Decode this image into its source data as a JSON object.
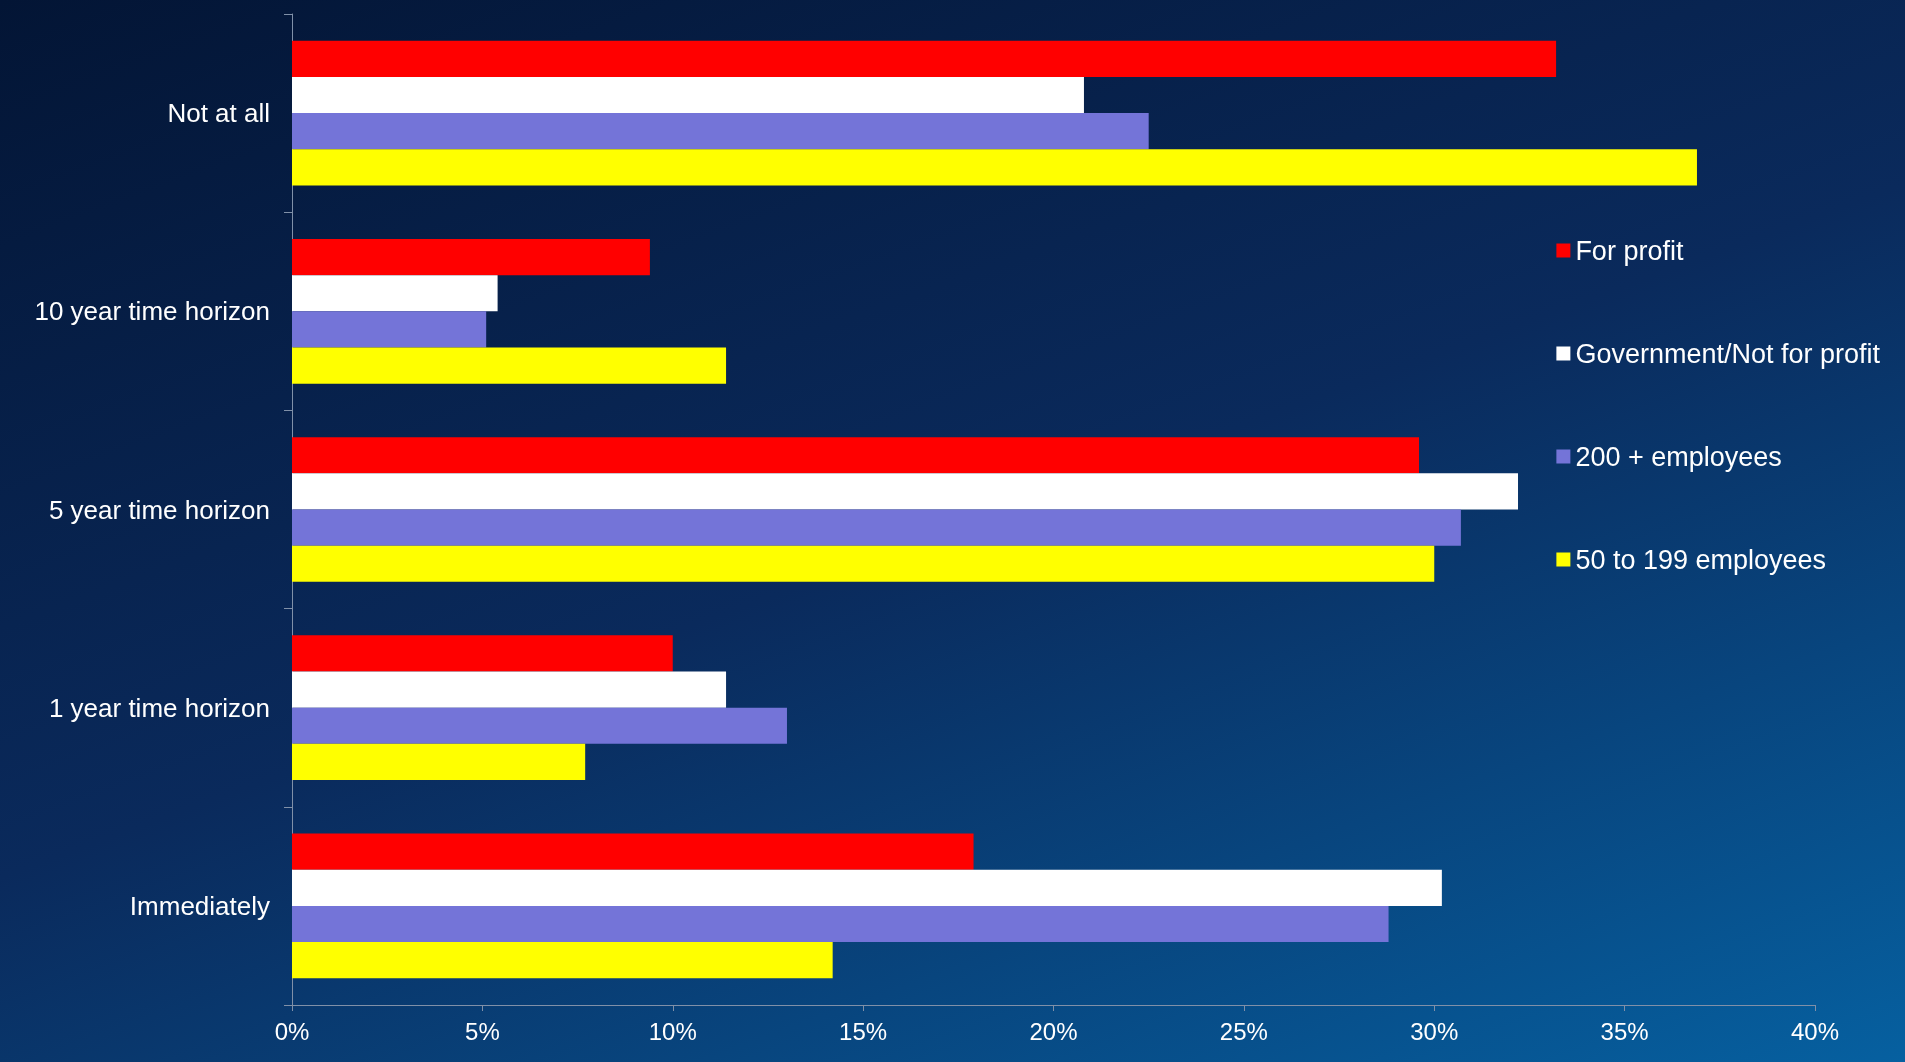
{
  "chart_data": {
    "type": "bar",
    "orientation": "horizontal",
    "categories": [
      "Not at all",
      "10 year time horizon",
      "5 year time horizon",
      "1 year time horizon",
      "Immediately"
    ],
    "series": [
      {
        "name": "For profit",
        "color": "#ff0000",
        "values": [
          33.2,
          9.4,
          29.6,
          10.0,
          17.9
        ]
      },
      {
        "name": "Government/Not for profit",
        "color": "#ffffff",
        "values": [
          20.8,
          5.4,
          32.2,
          11.4,
          30.2
        ]
      },
      {
        "name": "200 + employees",
        "color": "#7474d8",
        "values": [
          22.5,
          5.1,
          30.7,
          13.0,
          28.8
        ]
      },
      {
        "name": "50 to 199 employees",
        "color": "#ffff00",
        "values": [
          36.9,
          11.4,
          30.0,
          7.7,
          14.2
        ]
      }
    ],
    "xlim": [
      0,
      40
    ],
    "xticks": [
      {
        "value": 0,
        "label": "0%"
      },
      {
        "value": 5,
        "label": "5%"
      },
      {
        "value": 10,
        "label": "10%"
      },
      {
        "value": 15,
        "label": "15%"
      },
      {
        "value": 20,
        "label": "20%"
      },
      {
        "value": 25,
        "label": "25%"
      },
      {
        "value": 30,
        "label": "30%"
      },
      {
        "value": 35,
        "label": "35%"
      },
      {
        "value": 40,
        "label": "40%"
      }
    ],
    "grid": false,
    "legend": "right"
  }
}
